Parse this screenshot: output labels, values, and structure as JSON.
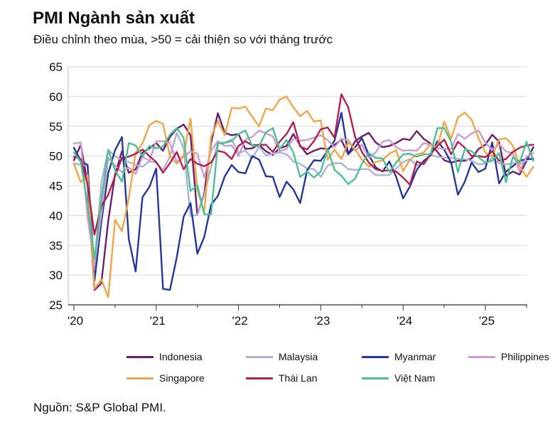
{
  "header": {
    "title": "PMI Ngành sản xuất",
    "subtitle": "Điều chỉnh theo mùa, >50 = cải thiện so với tháng trước"
  },
  "source": "Nguồn: S&P Global PMI.",
  "chart_data": {
    "type": "line",
    "title": "PMI Ngành sản xuất",
    "xlabel": "",
    "ylabel": "",
    "ylim": [
      25,
      65
    ],
    "yticks": [
      "65",
      "60",
      "55",
      "50",
      "45",
      "40",
      "35",
      "30",
      "25"
    ],
    "xticks": [
      {
        "label": "'20",
        "year": 2020
      },
      {
        "label": "'21",
        "year": 2021
      },
      {
        "label": "'22",
        "year": 2022
      },
      {
        "label": "'23",
        "year": 2023
      },
      {
        "label": "'24",
        "year": 2024
      },
      {
        "label": "'25",
        "year": 2025
      }
    ],
    "x_start": "2020-01",
    "grid": true,
    "legend_position": "bottom",
    "series": [
      {
        "name": "Indonesia",
        "color": "#6b1d6e",
        "values": [
          49.3,
          51.9,
          45.3,
          27.5,
          28.6,
          39.1,
          46.9,
          50.8,
          47.2,
          47.8,
          50.6,
          51.3,
          52.2,
          50.9,
          53.2,
          54.6,
          55.3,
          53.5,
          40.1,
          43.7,
          52.2,
          57.2,
          53.9,
          53.5,
          53.7,
          51.2,
          51.3,
          51.9,
          50.8,
          50.2,
          51.3,
          51.7,
          53.7,
          51.8,
          50.3,
          50.9,
          51.3,
          51.2,
          51.9,
          52.7,
          50.3,
          52.5,
          53.3,
          53.9,
          52.3,
          51.5,
          51.7,
          52.2,
          52.9,
          52.7,
          54.2,
          52.9,
          52.1,
          50.7,
          49.3,
          48.9,
          49.2,
          49.2,
          49.6,
          51.2,
          51.9,
          53.6,
          52.4,
          46.7,
          47.4,
          46.9,
          49.2,
          51.5
        ]
      },
      {
        "name": "Malaysia",
        "color": "#a9b3d6",
        "values": [
          48.8,
          48.5,
          48.4,
          31.3,
          45.6,
          51.0,
          50.0,
          49.3,
          49.0,
          48.5,
          48.2,
          49.1,
          48.9,
          47.7,
          49.9,
          53.9,
          51.3,
          39.9,
          40.1,
          43.4,
          48.1,
          52.2,
          52.3,
          52.8,
          50.5,
          50.9,
          49.6,
          51.6,
          50.1,
          50.4,
          50.6,
          50.3,
          49.1,
          48.7,
          47.9,
          47.8,
          46.5,
          48.4,
          48.8,
          48.8,
          47.8,
          47.7,
          47.8,
          47.8,
          46.8,
          46.8,
          46.8,
          47.9,
          49.0,
          49.5,
          48.4,
          49.0,
          50.2,
          49.9,
          49.7,
          49.7,
          49.5,
          49.5,
          49.2,
          48.6,
          48.7,
          49.7,
          48.8,
          48.6,
          48.8,
          48.6,
          49.3,
          49.7
        ]
      },
      {
        "name": "Myanmar",
        "color": "#24379a",
        "values": [
          51.4,
          49.2,
          48.5,
          29.0,
          38.9,
          47.1,
          51.0,
          53.2,
          36.1,
          30.6,
          43.1,
          44.8,
          47.9,
          27.7,
          27.5,
          33.0,
          39.8,
          42.1,
          33.6,
          36.4,
          41.8,
          43.3,
          46.6,
          48.5,
          47.3,
          47.1,
          50.0,
          49.4,
          46.6,
          46.5,
          43.1,
          45.7,
          44.4,
          42.1,
          47.6,
          49.3,
          49.2,
          50.9,
          52.6,
          57.3,
          50.3,
          51.5,
          53.0,
          50.2,
          48.1,
          47.4,
          49.1,
          46.5,
          42.9,
          44.9,
          47.7,
          49.2,
          50.1,
          52.5,
          51.1,
          48.9,
          43.5,
          45.7,
          48.9,
          47.3,
          47.9,
          52.3,
          45.4,
          47.4,
          48.3,
          49.2,
          49.5,
          49.5
        ]
      },
      {
        "name": "Philippines",
        "color": "#c99bd0",
        "values": [
          52.1,
          52.3,
          39.7,
          31.6,
          40.1,
          49.7,
          48.4,
          47.3,
          48.1,
          47.0,
          49.9,
          49.2,
          52.5,
          52.5,
          52.2,
          49.0,
          49.9,
          50.8,
          50.4,
          46.4,
          50.9,
          52.5,
          51.7,
          51.8,
          50.0,
          52.8,
          53.2,
          54.3,
          53.8,
          53.3,
          50.8,
          51.2,
          52.9,
          52.6,
          52.7,
          53.1,
          53.5,
          52.7,
          51.5,
          52.9,
          52.7,
          50.9,
          51.9,
          49.7,
          50.6,
          52.4,
          52.7,
          51.5,
          50.9,
          51.0,
          50.9,
          52.2,
          51.9,
          51.3,
          51.2,
          51.2,
          53.7,
          52.9,
          53.8,
          54.3,
          52.3,
          51.0,
          52.0,
          50.8,
          50.5,
          47.4,
          49.9,
          50.5
        ]
      },
      {
        "name": "Singapore",
        "color": "#f0a548",
        "values": [
          48.7,
          45.6,
          46.8,
          27.7,
          29.3,
          26.3,
          39.3,
          37.4,
          42.9,
          50.6,
          52.1,
          55.2,
          55.9,
          55.4,
          50.0,
          48.7,
          50.1,
          56.3,
          44.3,
          40.5,
          53.2,
          55.9,
          53.5,
          58.1,
          58.0,
          58.3,
          56.6,
          55.0,
          58.0,
          57.7,
          59.5,
          60.0,
          58.2,
          56.7,
          57.6,
          55.8,
          56.0,
          49.4,
          51.1,
          49.5,
          52.3,
          51.2,
          49.4,
          48.2,
          49.0,
          49.3,
          50.4,
          51.0,
          47.5,
          49.4,
          50.3,
          50.6,
          52.0,
          51.5,
          55.8,
          52.9,
          56.5,
          57.3,
          56.1,
          53.0,
          50.6,
          49.9,
          52.8,
          53.0,
          51.8,
          48.3,
          46.5,
          48.2
        ]
      },
      {
        "name": "Thái Lan",
        "color": "#b3204f",
        "values": [
          49.9,
          49.5,
          45.2,
          36.8,
          41.6,
          43.5,
          46.6,
          49.7,
          49.9,
          50.4,
          51.1,
          50.0,
          49.0,
          47.2,
          48.8,
          50.7,
          47.8,
          49.5,
          48.7,
          48.3,
          48.9,
          50.9,
          50.6,
          49.5,
          51.7,
          52.5,
          51.8,
          51.9,
          51.9,
          50.7,
          52.4,
          53.7,
          55.7,
          51.6,
          51.1,
          52.5,
          54.5,
          54.8,
          53.1,
          60.4,
          58.2,
          53.2,
          50.7,
          48.9,
          47.8,
          47.5,
          47.6,
          47.4,
          46.4,
          45.2,
          49.1,
          48.6,
          50.3,
          51.7,
          52.8,
          50.3,
          52.4,
          51.4,
          50.0,
          50.0,
          49.8,
          50.8,
          49.2,
          49.5,
          50.7,
          51.4,
          51.8,
          51.9
        ]
      },
      {
        "name": "Việt Nam",
        "color": "#4ebf95",
        "values": [
          50.6,
          49.0,
          41.9,
          32.7,
          42.7,
          51.1,
          47.6,
          45.7,
          52.2,
          51.8,
          49.9,
          51.7,
          51.3,
          51.6,
          53.6,
          54.7,
          53.1,
          44.1,
          45.1,
          40.2,
          40.2,
          52.1,
          52.2,
          52.5,
          53.7,
          54.3,
          51.7,
          51.7,
          54.0,
          54.7,
          51.2,
          52.7,
          50.6,
          46.5,
          47.4,
          46.4,
          47.4,
          51.2,
          47.7,
          46.7,
          45.3,
          46.2,
          48.7,
          50.5,
          49.7,
          49.6,
          47.3,
          48.9,
          50.3,
          50.4,
          49.9,
          50.3,
          50.3,
          54.7,
          54.7,
          52.4,
          47.3,
          51.2,
          50.8,
          49.8,
          48.9,
          49.2,
          50.5,
          45.6,
          49.8,
          48.9,
          52.4,
          49.2
        ]
      }
    ]
  }
}
